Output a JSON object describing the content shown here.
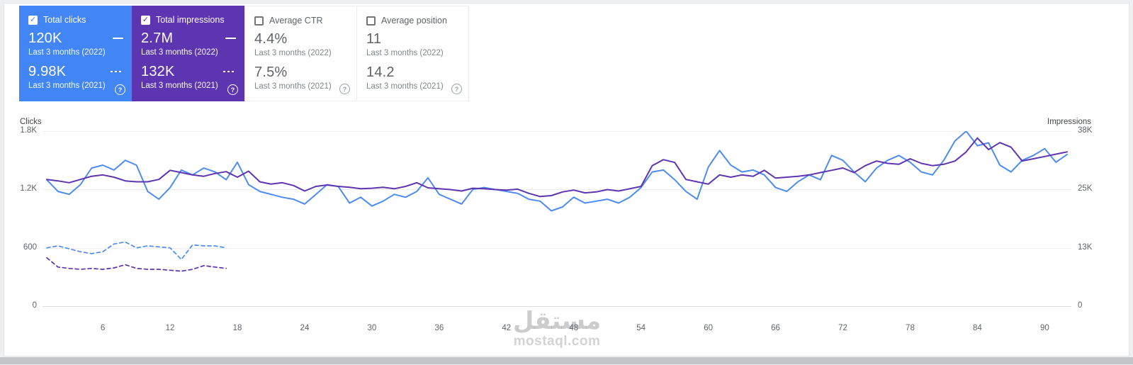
{
  "cards": [
    {
      "label": "Total clicks",
      "checked": true,
      "color": "#4285f4",
      "value_2022": "120K",
      "period_2022": "Last 3 months (2022)",
      "value_2021": "9.98K",
      "period_2021": "Last 3 months (2021)"
    },
    {
      "label": "Total impressions",
      "checked": true,
      "color": "#5e35b1",
      "value_2022": "2.7M",
      "period_2022": "Last 3 months (2022)",
      "value_2021": "132K",
      "period_2021": "Last 3 months (2021)"
    },
    {
      "label": "Average CTR",
      "checked": false,
      "value_2022": "4.4%",
      "period_2022": "Last 3 months (2022)",
      "value_2021": "7.5%",
      "period_2021": "Last 3 months (2021)"
    },
    {
      "label": "Average position",
      "checked": false,
      "value_2022": "11",
      "period_2022": "Last 3 months (2022)",
      "value_2021": "14.2",
      "period_2021": "Last 3 months (2021)"
    }
  ],
  "checkmark": "✓",
  "help_icon": "?",
  "watermark": {
    "line1": "مستقل",
    "line2": "mostaql.com"
  },
  "chart_data": {
    "type": "line",
    "x_count": 92,
    "x_ticks": [
      6,
      12,
      18,
      24,
      30,
      36,
      42,
      48,
      54,
      60,
      66,
      72,
      78,
      84,
      90
    ],
    "left_axis": {
      "title": "Clicks",
      "max": 1800,
      "ticks": [
        "1.8K",
        "1.2K",
        "600",
        "0"
      ]
    },
    "right_axis": {
      "title": "Impressions",
      "max": 38,
      "unit": "K",
      "ticks": [
        "38K",
        "25K",
        "13K",
        "0"
      ]
    },
    "legend_note": "solid = 2022, dashed = 2021 (dashed series only cover first ~17 days)",
    "series": [
      {
        "name": "Clicks 2022",
        "axis": "left",
        "style": "solid",
        "color": "#4e8cf0",
        "values": [
          1300,
          1180,
          1150,
          1250,
          1420,
          1450,
          1400,
          1500,
          1450,
          1180,
          1100,
          1220,
          1400,
          1350,
          1420,
          1380,
          1300,
          1480,
          1250,
          1180,
          1150,
          1120,
          1100,
          1050,
          1150,
          1250,
          1230,
          1060,
          1120,
          1030,
          1080,
          1150,
          1120,
          1180,
          1320,
          1150,
          1100,
          1050,
          1200,
          1220,
          1200,
          1180,
          1160,
          1100,
          1080,
          980,
          1020,
          1120,
          1060,
          1080,
          1100,
          1060,
          1120,
          1220,
          1380,
          1400,
          1300,
          1180,
          1100,
          1430,
          1600,
          1450,
          1380,
          1400,
          1350,
          1220,
          1180,
          1280,
          1350,
          1300,
          1550,
          1500,
          1380,
          1280,
          1420,
          1500,
          1550,
          1480,
          1380,
          1350,
          1500,
          1700,
          1800,
          1650,
          1680,
          1450,
          1380,
          1500,
          1550,
          1620,
          1480,
          1560
        ]
      },
      {
        "name": "Impressions 2022",
        "axis": "right",
        "style": "solid",
        "color": "#5e35b1",
        "values": [
          27.5,
          27.2,
          26.8,
          27.5,
          28.2,
          28.5,
          28.0,
          27.2,
          27.0,
          27.0,
          27.5,
          29.5,
          29.0,
          28.5,
          28.2,
          28.8,
          29.2,
          28.0,
          29.3,
          27.0,
          26.5,
          26.8,
          26.2,
          25.0,
          26.0,
          26.3,
          26.0,
          25.8,
          25.5,
          25.6,
          25.8,
          25.5,
          26.0,
          26.8,
          25.7,
          25.5,
          25.3,
          25.0,
          25.6,
          25.5,
          25.3,
          25.2,
          25.4,
          24.5,
          23.8,
          24.0,
          24.8,
          25.2,
          24.6,
          24.8,
          25.3,
          25.0,
          25.5,
          26.0,
          30.5,
          31.8,
          31.2,
          27.5,
          27.0,
          26.5,
          28.5,
          28.0,
          28.5,
          28.2,
          29.5,
          27.8,
          28.0,
          28.2,
          28.5,
          29.0,
          29.5,
          30.0,
          29.0,
          30.5,
          31.5,
          31.0,
          30.8,
          32.0,
          31.0,
          30.5,
          30.8,
          31.5,
          33.5,
          36.5,
          34.0,
          35.5,
          34.5,
          31.5,
          32.0,
          32.5,
          33.0,
          33.5
        ]
      },
      {
        "name": "Clicks 2021",
        "axis": "left",
        "style": "dashed",
        "color": "#4e8cf0",
        "values": [
          600,
          620,
          590,
          560,
          540,
          560,
          640,
          660,
          600,
          620,
          610,
          600,
          480,
          630,
          620,
          620,
          600
        ]
      },
      {
        "name": "Impressions 2021",
        "axis": "right",
        "style": "dashed",
        "color": "#5e35b1",
        "values": [
          10.5,
          8.5,
          8.2,
          8.0,
          8.2,
          8.0,
          8.3,
          9.0,
          8.2,
          8.0,
          8.0,
          7.8,
          7.6,
          8.0,
          8.8,
          8.5,
          8.2
        ]
      }
    ]
  }
}
